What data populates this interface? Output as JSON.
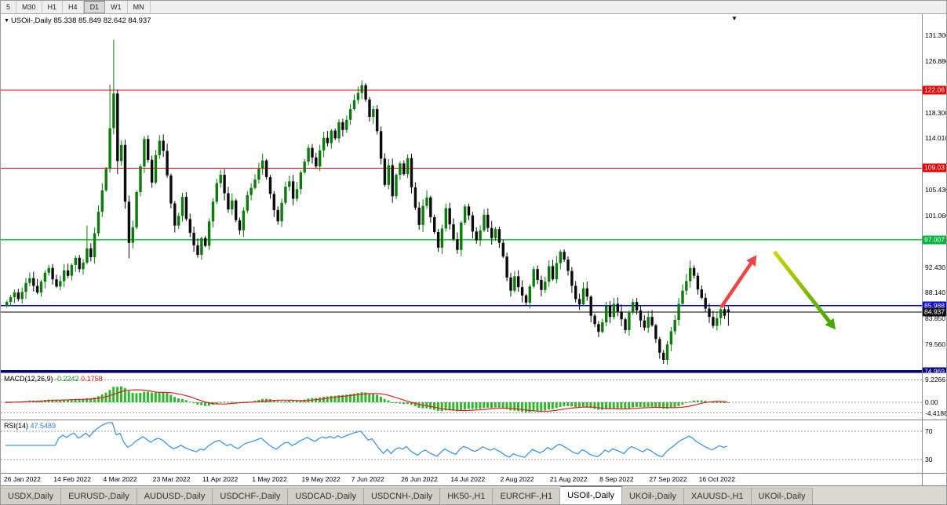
{
  "toolbar": {
    "timeframes": [
      "5",
      "M30",
      "H1",
      "H4",
      "D1",
      "W1",
      "MN"
    ],
    "active": "D1"
  },
  "chart": {
    "marker": "▼",
    "title": "USOil-,Daily",
    "ohlc": "85.338 85.849 82.642 84.937",
    "top_marker": "▼"
  },
  "price_axis": {
    "ticks": [
      {
        "label": "131.300",
        "value": 131.3
      },
      {
        "label": "126.880",
        "value": 126.88
      },
      {
        "label": "118.300",
        "value": 118.3
      },
      {
        "label": "114.010",
        "value": 114.01
      },
      {
        "label": "105.430",
        "value": 105.43
      },
      {
        "label": "101.060",
        "value": 101.06
      },
      {
        "label": "92.430",
        "value": 92.43
      },
      {
        "label": "88.140",
        "value": 88.14
      },
      {
        "label": "83.850",
        "value": 83.85
      },
      {
        "label": "79.560",
        "value": 79.56
      }
    ],
    "badges": [
      {
        "label": "122.06",
        "value": 122.06,
        "bg": "#f00000"
      },
      {
        "label": "109.03",
        "value": 109.03,
        "bg": "#f00000"
      },
      {
        "label": "97.007",
        "value": 97.007,
        "bg": "#00b43c"
      },
      {
        "label": "85.988",
        "value": 85.988,
        "bg": "#0000e0"
      },
      {
        "label": "84.937",
        "value": 84.937,
        "bg": "#111111"
      },
      {
        "label": "74.969",
        "value": 74.969,
        "bg": "#000080"
      }
    ]
  },
  "chart_data": {
    "type": "candlestick",
    "symbol": "USOil-",
    "timeframe": "Daily",
    "current_bar": {
      "open": 85.338,
      "high": 85.849,
      "low": 82.642,
      "close": 84.937
    },
    "first_open": 85.9,
    "closes": [
      86.6,
      87.4,
      88.2,
      87.1,
      88.3,
      89.8,
      90.6,
      89.3,
      88.2,
      90.0,
      91.5,
      92.3,
      90.4,
      89.2,
      90.1,
      91.9,
      91.0,
      92.8,
      94.0,
      92.1,
      93.2,
      95.6,
      94.1,
      98.1,
      101.7,
      105.3,
      108.9,
      115.7,
      121.5,
      110.2,
      112.9,
      103.4,
      96.5,
      99.1,
      105.0,
      109.3,
      113.9,
      110.4,
      106.6,
      111.2,
      113.6,
      111.9,
      107.8,
      103.1,
      99.4,
      101.0,
      104.2,
      100.5,
      98.2,
      96.1,
      94.5,
      97.3,
      96.0,
      100.1,
      103.4,
      106.5,
      107.9,
      104.8,
      102.1,
      103.6,
      100.3,
      98.6,
      101.9,
      104.5,
      105.7,
      107.1,
      108.9,
      110.3,
      107.5,
      104.7,
      102.0,
      100.1,
      103.2,
      105.9,
      106.8,
      103.9,
      105.5,
      108.3,
      110.1,
      112.4,
      110.8,
      109.3,
      112.0,
      114.1,
      113.2,
      115.3,
      114.0,
      116.7,
      115.4,
      117.1,
      118.9,
      120.4,
      121.6,
      122.9,
      120.5,
      117.6,
      118.9,
      115.2,
      110.6,
      106.2,
      109.5,
      104.3,
      107.9,
      109.8,
      108.0,
      110.7,
      105.8,
      102.4,
      99.5,
      102.7,
      104.1,
      100.8,
      98.3,
      95.7,
      98.9,
      102.3,
      99.6,
      97.1,
      95.3,
      99.9,
      102.6,
      101.1,
      98.4,
      96.9,
      98.6,
      101.2,
      99.0,
      97.3,
      98.8,
      96.5,
      94.2,
      90.7,
      88.5,
      90.9,
      89.1,
      87.7,
      86.5,
      89.2,
      92.1,
      90.3,
      88.6,
      90.0,
      92.6,
      90.4,
      93.1,
      95.0,
      93.7,
      91.8,
      89.3,
      87.1,
      86.2,
      88.9,
      87.5,
      84.3,
      82.9,
      81.6,
      83.2,
      85.9,
      84.1,
      86.3,
      85.0,
      83.7,
      81.9,
      84.8,
      86.6,
      85.2,
      83.5,
      82.3,
      84.1,
      82.7,
      80.4,
      78.1,
      76.9,
      79.5,
      81.7,
      83.6,
      86.3,
      88.5,
      90.1,
      92.3,
      91.0,
      88.7,
      87.3,
      85.5,
      84.1,
      82.6,
      83.9,
      85.4,
      84.3,
      84.94
    ],
    "overrides": {
      "21": {
        "h": 99.4
      },
      "27": {
        "h": 123.0
      },
      "28": {
        "h": 130.5
      },
      "29": {
        "l": 108.0
      },
      "32": {
        "l": 93.9
      },
      "93": {
        "h": 123.68
      },
      "172": {
        "l": 76.25
      },
      "179": {
        "h": 93.55
      },
      "189": {
        "o": 85.338,
        "h": 85.849,
        "l": 82.642,
        "c": 84.937
      }
    },
    "levels": [
      {
        "value": 122.06,
        "color": "#f00000",
        "w": 1
      },
      {
        "value": 109.03,
        "color": "#f00000",
        "w": 1
      },
      {
        "value": 97.007,
        "color": "#00cc33",
        "w": 1.4
      },
      {
        "value": 85.988,
        "color": "#0000e0",
        "w": 1.4
      },
      {
        "value": 84.937,
        "color": "#000000",
        "w": 1
      },
      {
        "value": 74.969,
        "color": "#000080",
        "w": 3
      }
    ],
    "colors": {
      "bull": "#0c7a0c",
      "bear": "#0b0b0b"
    },
    "arrows": [
      {
        "name": "bullish-arrow",
        "color": "#ef4444",
        "from": [
          918,
          374
        ],
        "to": [
          956,
          318
        ],
        "width": 4.5
      },
      {
        "name": "bearish-arrow",
        "gradient": [
          "#ccd600",
          "#46a800"
        ],
        "from": [
          986,
          303
        ],
        "to": [
          1056,
          392
        ],
        "width": 5
      }
    ],
    "date_labels": [
      "26 Jan 2022",
      "14 Feb 2022",
      "4 Mar 2022",
      "23 Mar 2022",
      "11 Apr 2022",
      "1 May 2022",
      "19 May 2022",
      "7 Jun 2022",
      "26 Jun 2022",
      "14 Jul 2022",
      "2 Aug 2022",
      "21 Aug 2022",
      "8 Sep 2022",
      "27 Sep 2022",
      "16 Oct 2022"
    ],
    "label_every_n_bars": 13
  },
  "macd": {
    "name": "MACD(12,26,9)",
    "value_main": "-0.2242",
    "value_signal": "0.1758",
    "axis": [
      {
        "label": "9.2266",
        "value": 9.2266
      },
      {
        "label": "0.00",
        "value": 0
      },
      {
        "label": "-4.4188",
        "value": -4.4188
      }
    ],
    "colors": {
      "hist": "#2db82d",
      "signal": "#e02020"
    }
  },
  "rsi": {
    "name": "RSI(14)",
    "value": "47.5489",
    "levels": [
      {
        "label": "70",
        "value": 70
      },
      {
        "label": "30",
        "value": 30
      }
    ],
    "color": "#3e96e6"
  },
  "tabs": {
    "active_index": 8,
    "items": [
      "USDX,Daily",
      "EURUSD-,Daily",
      "AUDUSD-,Daily",
      "USDCHF-,Daily",
      "USDCAD-,Daily",
      "USDCNH-,Daily",
      "HK50-,H1",
      "EURCHF-,H1",
      "USOil-,Daily",
      "UKOil-,Daily",
      "XAUUSD-,H1",
      "UKOil-,Daily"
    ]
  }
}
